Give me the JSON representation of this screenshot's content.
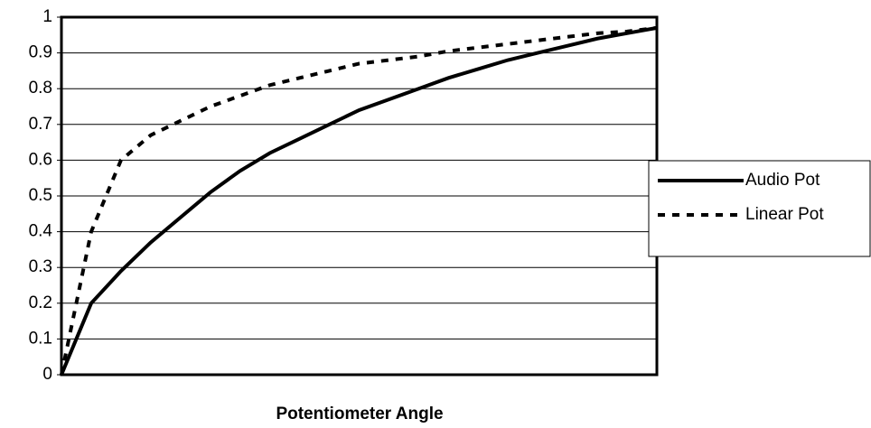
{
  "chart_data": {
    "type": "line",
    "x_label": "Potentiometer Angle",
    "categories": [
      null,
      null,
      null,
      null,
      null,
      null,
      null,
      null,
      null,
      null,
      null,
      null,
      null,
      null,
      null,
      null,
      null,
      null,
      null,
      null,
      null
    ],
    "series": [
      {
        "name": "Audio Pot",
        "color": "#000000",
        "style": "solid",
        "values": [
          0,
          0.2,
          0.29,
          0.37,
          0.44,
          0.51,
          0.57,
          0.62,
          0.66,
          0.7,
          0.74,
          0.77,
          0.8,
          0.83,
          0.855,
          0.88,
          0.9,
          0.92,
          0.94,
          0.955,
          0.97
        ]
      },
      {
        "name": "Linear Pot",
        "color": "#000000",
        "style": "dashed",
        "values": [
          0,
          0.4,
          0.6,
          0.67,
          0.71,
          0.75,
          0.78,
          0.81,
          0.83,
          0.85,
          0.87,
          0.88,
          0.89,
          0.905,
          0.915,
          0.925,
          0.935,
          0.945,
          0.955,
          0.96,
          0.97
        ]
      }
    ],
    "ylim": [
      0,
      1
    ],
    "yticks": [
      0,
      0.1,
      0.2,
      0.3,
      0.4,
      0.5,
      0.6,
      0.7,
      0.8,
      0.9,
      1
    ],
    "grid": true,
    "legend": "right"
  }
}
